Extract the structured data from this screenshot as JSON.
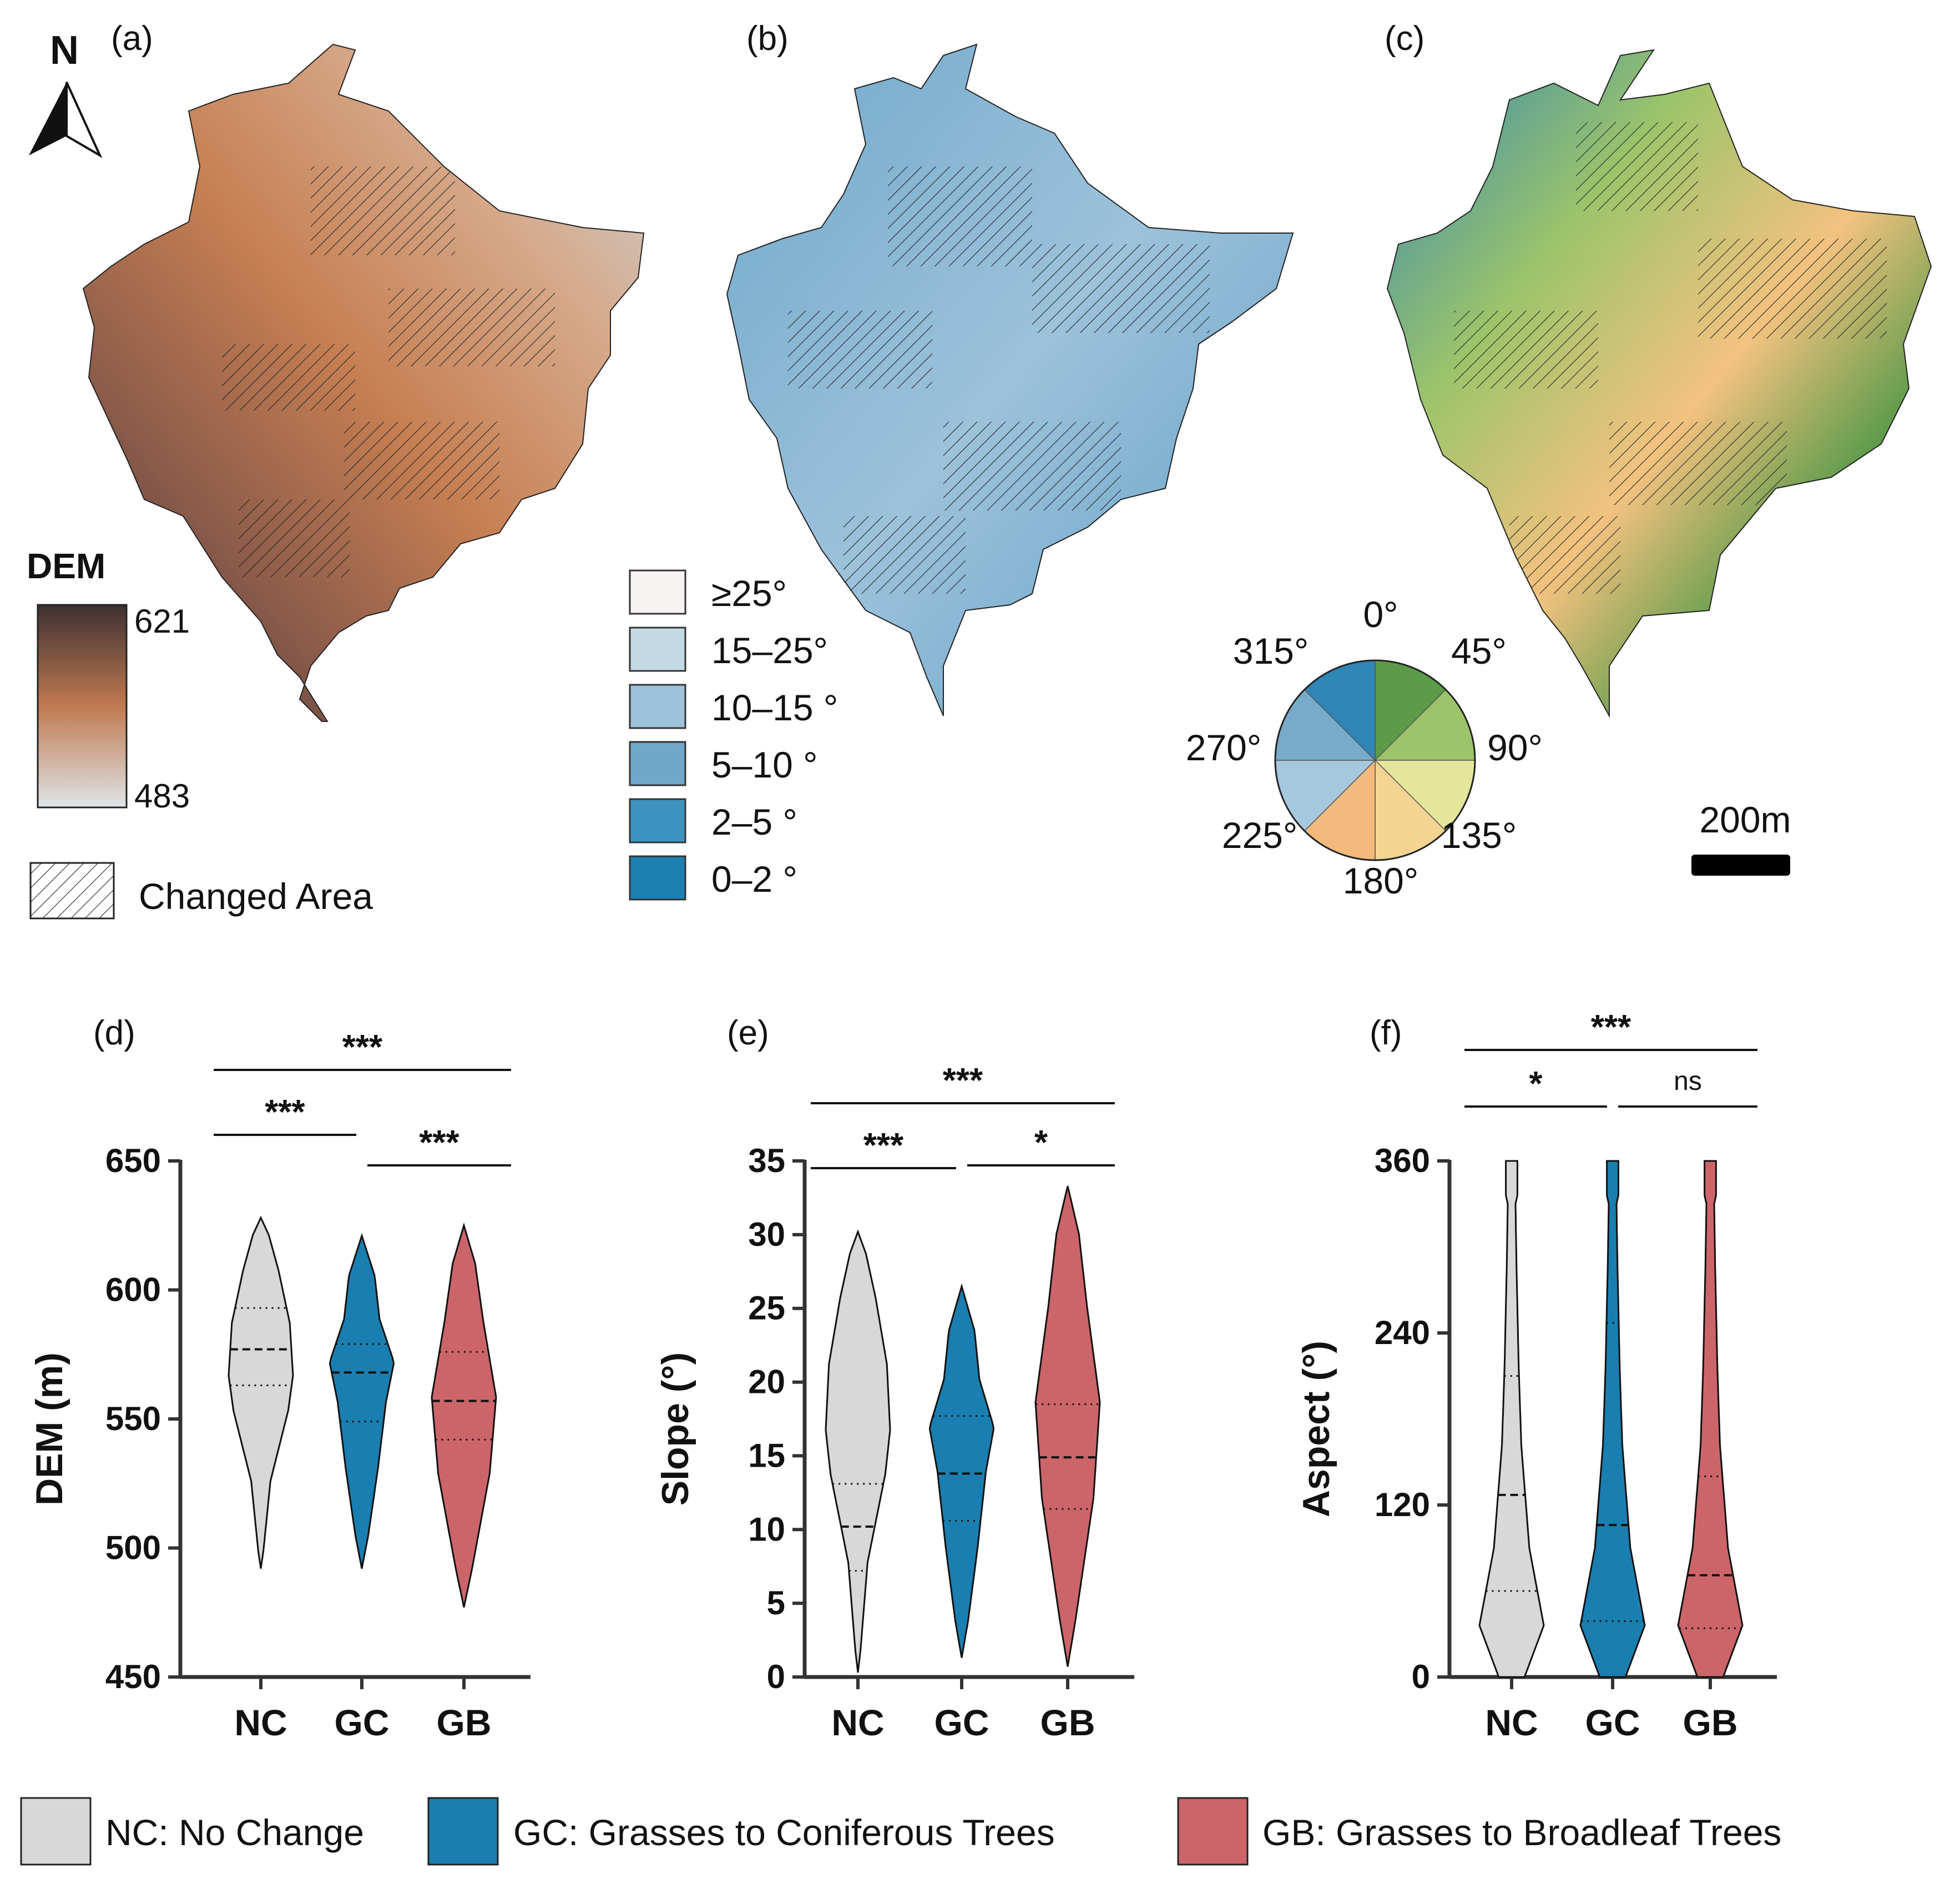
{
  "maps": {
    "a": {
      "label": "(a)",
      "north": "N",
      "dem_title": "DEM",
      "dem_max": "621",
      "dem_min": "483",
      "changed_area": "Changed Area",
      "colors": {
        "high": "#3d3033",
        "mid": "#c07a50",
        "low": "#dfe5e8"
      }
    },
    "b": {
      "label": "(b)",
      "slope_legend": [
        {
          "label": "≥25°",
          "color": "#f6f3f2"
        },
        {
          "label": "15–25°",
          "color": "#c4d9e6"
        },
        {
          "label": "10–15 °",
          "color": "#9dc2da"
        },
        {
          "label": "5–10 °",
          "color": "#6fa8cb"
        },
        {
          "label": "2–5 °",
          "color": "#3f93c0"
        },
        {
          "label": "0–2 °",
          "color": "#1b80b2"
        }
      ]
    },
    "c": {
      "label": "(c)",
      "aspect_labels": [
        "0°",
        "45°",
        "90°",
        "135°",
        "180°",
        "225°",
        "270°",
        "315°"
      ],
      "aspect_colors": [
        "#5b9b4a",
        "#9cc46a",
        "#e4e69b",
        "#f3d591",
        "#f3b97d",
        "#a6c8de",
        "#77abc9",
        "#2f86b7"
      ],
      "scale": "200m"
    }
  },
  "chart_data": [
    {
      "type": "violin",
      "panel": "(d)",
      "ylabel": "DEM (m)",
      "categories": [
        "NC",
        "GC",
        "GB"
      ],
      "ylim": [
        450,
        650
      ],
      "yticks": [
        "450",
        "500",
        "550",
        "600",
        "650"
      ],
      "series": [
        {
          "name": "NC",
          "min": 492,
          "max": 628,
          "q1": 563,
          "median": 577,
          "q3": 593
        },
        {
          "name": "GC",
          "min": 492,
          "max": 621,
          "q1": 549,
          "median": 568,
          "q3": 579
        },
        {
          "name": "GB",
          "min": 477,
          "max": 625,
          "q1": 542,
          "median": 557,
          "q3": 576
        }
      ],
      "significance": [
        {
          "from": 0,
          "to": 2,
          "label": "***"
        },
        {
          "from": 0,
          "to": 1,
          "label": "***"
        },
        {
          "from": 1,
          "to": 2,
          "label": "***"
        }
      ]
    },
    {
      "type": "violin",
      "panel": "(e)",
      "ylabel": "Slope (°)",
      "categories": [
        "NC",
        "GC",
        "GB"
      ],
      "ylim": [
        0,
        35
      ],
      "yticks": [
        "0",
        "5",
        "10",
        "15",
        "20",
        "25",
        "30",
        "35"
      ],
      "series": [
        {
          "name": "NC",
          "min": 0.3,
          "max": 30.2,
          "q1": 7.2,
          "median": 10.2,
          "q3": 13.1
        },
        {
          "name": "GC",
          "min": 1.3,
          "max": 26.5,
          "q1": 10.6,
          "median": 13.8,
          "q3": 17.7
        },
        {
          "name": "GB",
          "min": 0.7,
          "max": 33.3,
          "q1": 11.4,
          "median": 14.9,
          "q3": 18.5
        }
      ],
      "significance": [
        {
          "from": 0,
          "to": 2,
          "label": "***"
        },
        {
          "from": 0,
          "to": 1,
          "label": "***"
        },
        {
          "from": 1,
          "to": 2,
          "label": "*"
        }
      ]
    },
    {
      "type": "violin",
      "panel": "(f)",
      "ylabel": "Aspect (°)",
      "categories": [
        "NC",
        "GC",
        "GB"
      ],
      "ylim": [
        0,
        360
      ],
      "yticks": [
        "0",
        "120",
        "240",
        "360"
      ],
      "series": [
        {
          "name": "NC",
          "min": 0,
          "max": 360,
          "q1": 60,
          "median": 127,
          "q3": 210
        },
        {
          "name": "GC",
          "min": 0,
          "max": 360,
          "q1": 39,
          "median": 106,
          "q3": 247
        },
        {
          "name": "GB",
          "min": 0,
          "max": 360,
          "q1": 34,
          "median": 71,
          "q3": 140
        }
      ],
      "significance": [
        {
          "from": 0,
          "to": 2,
          "label": "***"
        },
        {
          "from": 0,
          "to": 1,
          "label": "*"
        },
        {
          "from": 1,
          "to": 2,
          "label": "ns"
        }
      ]
    }
  ],
  "legend": [
    {
      "label": "NC: No Change",
      "color": "#d8d8d8"
    },
    {
      "label": "GC: Grasses to Coniferous Trees",
      "color": "#1a7fb0"
    },
    {
      "label": "GB: Grasses to Broadleaf Trees",
      "color": "#cc656a"
    }
  ]
}
